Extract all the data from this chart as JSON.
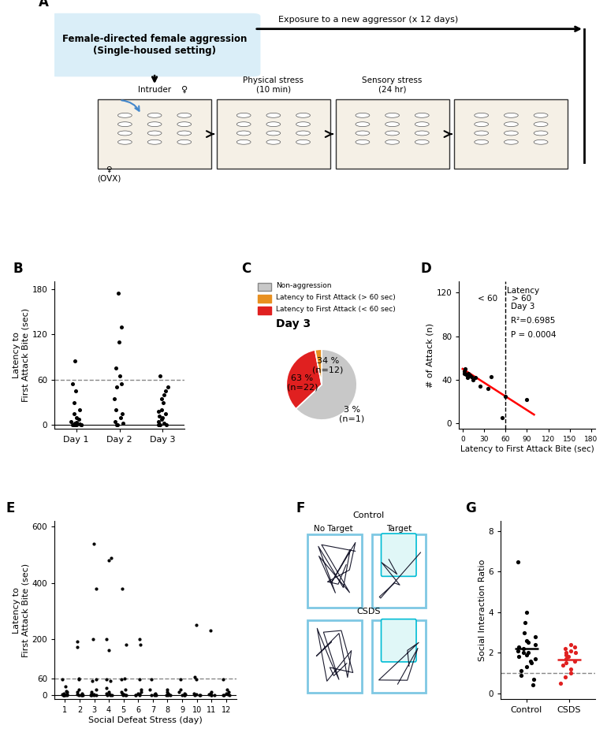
{
  "panel_A": {
    "box_text": "Female-directed female aggression\n(Single-housed setting)",
    "box_color": "#daeef8",
    "arrow_text": "Exposure to a new aggressor (x 12 days)"
  },
  "panel_B": {
    "ylabel": "Latency to\nFirst Attack Bite (sec)",
    "ylim": [
      -5,
      190
    ],
    "yticks": [
      0,
      60,
      120,
      180
    ],
    "dashed_y": 60,
    "day1": [
      0,
      0,
      0,
      0,
      0,
      0,
      1,
      2,
      3,
      5,
      8,
      10,
      15,
      20,
      30,
      45,
      55,
      85
    ],
    "day2": [
      0,
      0,
      2,
      5,
      10,
      15,
      20,
      35,
      50,
      55,
      65,
      75,
      110,
      130,
      175
    ],
    "day3": [
      0,
      0,
      0,
      2,
      5,
      8,
      10,
      12,
      15,
      18,
      20,
      30,
      35,
      40,
      45,
      50,
      65
    ]
  },
  "panel_C": {
    "day_label": "Day 3",
    "sizes": [
      63,
      34,
      3
    ],
    "colors": [
      "#c8c8c8",
      "#e02020",
      "#e89020"
    ],
    "legend_labels": [
      "Non-aggression",
      "Latency to First Attack (> 60 sec)",
      "Latency to First Attack (< 60 sec)"
    ],
    "legend_colors": [
      "#c8c8c8",
      "#e89020",
      "#e02020"
    ]
  },
  "panel_D": {
    "xlabel": "Latency to First Attack Bite (sec)",
    "ylabel": "# of Attack (n)",
    "xlim": [
      -5,
      185
    ],
    "ylim": [
      -5,
      130
    ],
    "xticks": [
      0,
      30,
      60,
      90,
      120,
      150,
      180
    ],
    "yticks": [
      0,
      40,
      80,
      120
    ],
    "dashed_x": 60,
    "scatter_x": [
      2,
      3,
      4,
      5,
      7,
      8,
      10,
      12,
      15,
      18,
      25,
      35,
      40,
      55,
      60,
      90
    ],
    "scatter_y": [
      46,
      48,
      50,
      45,
      42,
      46,
      44,
      43,
      40,
      42,
      34,
      32,
      43,
      5,
      25,
      22
    ],
    "reg_x0": 0,
    "reg_x1": 100,
    "reg_y0": 50,
    "reg_y1": 8
  },
  "panel_E": {
    "ylabel": "Latency to\nFirst Attack Bite (sec)",
    "xlabel": "Social Defeat Stress (day)",
    "ylim": [
      -15,
      620
    ],
    "yticks": [
      0,
      60,
      200,
      400,
      600
    ],
    "dashed_y": 60,
    "data": {
      "1": [
        0,
        0,
        0,
        0,
        0,
        1,
        2,
        3,
        5,
        10,
        15,
        30,
        55
      ],
      "2": [
        0,
        0,
        0,
        1,
        2,
        5,
        10,
        20,
        55,
        60,
        170,
        190
      ],
      "3": [
        0,
        0,
        0,
        1,
        2,
        5,
        10,
        20,
        50,
        55,
        200,
        380,
        540
      ],
      "4": [
        0,
        0,
        1,
        2,
        5,
        10,
        25,
        50,
        55,
        160,
        200,
        480,
        490
      ],
      "5": [
        0,
        0,
        1,
        2,
        5,
        10,
        20,
        55,
        60,
        180,
        380
      ],
      "6": [
        0,
        0,
        1,
        2,
        5,
        10,
        20,
        55,
        180,
        200
      ],
      "7": [
        0,
        0,
        1,
        2,
        5,
        20,
        55
      ],
      "8": [
        0,
        0,
        1,
        2,
        5,
        10,
        20
      ],
      "9": [
        0,
        0,
        1,
        2,
        5,
        10,
        20,
        55
      ],
      "10": [
        0,
        0,
        1,
        2,
        5,
        55,
        65,
        250
      ],
      "11": [
        0,
        0,
        1,
        2,
        5,
        10,
        230
      ],
      "12": [
        0,
        0,
        1,
        2,
        5,
        10,
        20,
        55
      ]
    }
  },
  "panel_G": {
    "ylabel": "Social Interaction Ratio",
    "ylim": [
      -0.3,
      8.5
    ],
    "yticks": [
      0,
      2,
      4,
      6,
      8
    ],
    "dashed_y": 1.0,
    "control_data": [
      0.4,
      0.7,
      0.9,
      1.1,
      1.3,
      1.5,
      1.6,
      1.7,
      1.8,
      1.9,
      2.0,
      2.0,
      2.1,
      2.2,
      2.3,
      2.4,
      2.5,
      2.6,
      2.8,
      3.0,
      3.5,
      4.0,
      6.5
    ],
    "csds_data": [
      0.5,
      0.8,
      1.0,
      1.2,
      1.4,
      1.5,
      1.6,
      1.7,
      1.8,
      1.9,
      2.0,
      2.0,
      2.1,
      2.2,
      2.3,
      2.4
    ],
    "control_color": "#000000",
    "csds_color": "#e02020"
  }
}
